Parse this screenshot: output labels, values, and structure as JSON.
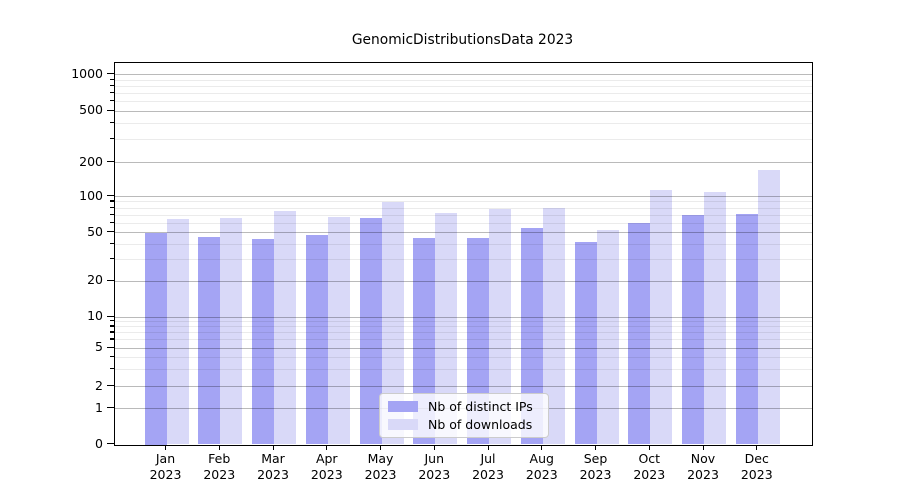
{
  "chart_data": {
    "type": "bar",
    "title": "GenomicDistributionsData 2023",
    "categories": [
      "Jan 2023",
      "Feb 2023",
      "Mar 2023",
      "Apr 2023",
      "May 2023",
      "Jun 2023",
      "Jul 2023",
      "Aug 2023",
      "Sep 2023",
      "Oct 2023",
      "Nov 2023",
      "Dec 2023"
    ],
    "month_labels": [
      "Jan",
      "Feb",
      "Mar",
      "Apr",
      "May",
      "Jun",
      "Jul",
      "Aug",
      "Sep",
      "Oct",
      "Nov",
      "Dec"
    ],
    "year": "2023",
    "series": [
      {
        "name": "Nb of distinct IPs",
        "color": "#a4a4f4",
        "values": [
          50,
          46,
          44,
          48,
          66,
          45,
          45,
          55,
          42,
          60,
          70,
          71
        ]
      },
      {
        "name": "Nb of downloads",
        "color": "#d9d9f8",
        "values": [
          65,
          66,
          75,
          68,
          90,
          73,
          79,
          80,
          52,
          115,
          110,
          172
        ]
      }
    ],
    "xlabel": "",
    "ylabel": "",
    "yscale": "symlog",
    "ylim": [
      0,
      1150
    ],
    "y_ticks": [
      0,
      1,
      2,
      5,
      10,
      20,
      50,
      100,
      200,
      500,
      1000
    ],
    "y_minor_ticks": [
      3,
      4,
      6,
      7,
      8,
      9,
      30,
      40,
      60,
      70,
      80,
      90,
      300,
      400,
      600,
      700,
      800,
      900
    ],
    "grid": true,
    "legend_position": "lower center"
  },
  "colors": {
    "major_grid": "#b9b9b9",
    "minor_grid": "#ebebeb",
    "spine": "#000000",
    "background": "#ffffff",
    "text": "#000000"
  }
}
